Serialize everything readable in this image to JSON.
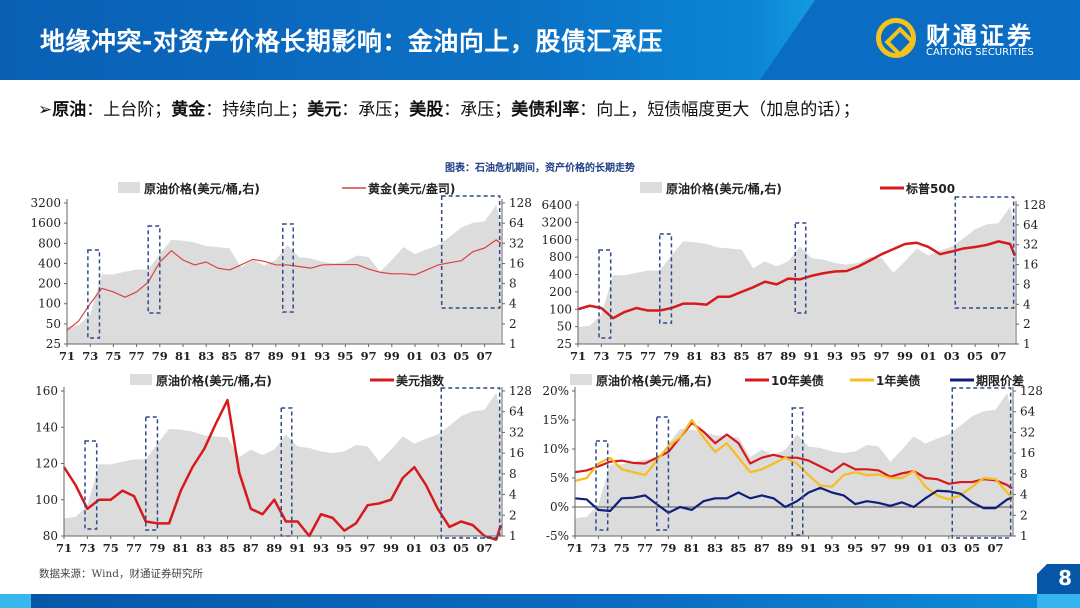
{
  "header": {
    "title": "地缘冲突-对资产价格长期影响：金油向上，股债汇承压",
    "logo_cn": "财通证券",
    "logo_en": "CAITONG SECURITIES"
  },
  "bullet": [
    {
      "k": "原油",
      "v": "上台阶；"
    },
    {
      "k": "黄金",
      "v": "持续向上；"
    },
    {
      "k": "美元",
      "v": "承压；"
    },
    {
      "k": "美股",
      "v": "承压；"
    },
    {
      "k": "美债利率",
      "v": "向上，短债幅度更大（加息的话）；"
    }
  ],
  "figure_title": "图表：石油危机期间，资产价格的长期走势",
  "source": "数据来源：Wind，财通证券研究所",
  "page_number": "8",
  "colors": {
    "oil_area": "#dcdcdc",
    "red": "#d7191c",
    "gold_line": "#d9423f",
    "yellow": "#f7bd1e",
    "navy": "#0d1f7a",
    "crisis_box": "#2f4a8c",
    "header": "#0b6cc4"
  },
  "chart_data": [
    {
      "type": "line",
      "scale": "log",
      "x_tick_labels": [
        "71",
        "73",
        "75",
        "77",
        "79",
        "81",
        "83",
        "85",
        "87",
        "89",
        "91",
        "93",
        "95",
        "97",
        "99",
        "01",
        "03",
        "05",
        "07"
      ],
      "ylim": [
        25,
        3200
      ],
      "y_ticks": [
        25,
        50,
        100,
        200,
        400,
        800,
        1600,
        3200
      ],
      "y2lim": [
        1,
        128
      ],
      "y2_ticks": [
        1,
        2,
        4,
        8,
        16,
        32,
        64,
        128
      ],
      "crisis_periods": [
        [
          1972.8,
          1973.8
        ],
        [
          1978.0,
          1979.0
        ],
        [
          1989.6,
          1990.5
        ],
        [
          2003.3,
          2008.3
        ]
      ],
      "series": [
        {
          "name": "原油价格(美元/桶,右)",
          "kind": "area",
          "axis": "right",
          "color": "#dcdcdc"
        },
        {
          "name": "黄金(美元/盎司)",
          "kind": "line",
          "axis": "left",
          "color": "#d9423f",
          "width": 1.2,
          "key": "gold"
        }
      ]
    },
    {
      "type": "line",
      "scale": "log",
      "x_tick_labels": [
        "71",
        "73",
        "75",
        "77",
        "79",
        "81",
        "83",
        "85",
        "87",
        "89",
        "91",
        "93",
        "95",
        "97",
        "99",
        "01",
        "03",
        "05",
        "07"
      ],
      "ylim": [
        25,
        6400
      ],
      "y_ticks": [
        25,
        50,
        100,
        200,
        400,
        800,
        1600,
        3200,
        6400
      ],
      "y2lim": [
        1,
        128
      ],
      "y2_ticks": [
        1,
        2,
        4,
        8,
        16,
        32,
        64,
        128
      ],
      "crisis_periods": [
        [
          1972.8,
          1973.8
        ],
        [
          1978.0,
          1979.0
        ],
        [
          1989.6,
          1990.5
        ],
        [
          2003.3,
          2008.3
        ]
      ],
      "series": [
        {
          "name": "原油价格(美元/桶,右)",
          "kind": "area",
          "axis": "right",
          "color": "#dcdcdc"
        },
        {
          "name": "标普500",
          "kind": "line",
          "axis": "left",
          "color": "#d7191c",
          "width": 2.5,
          "key": "spx"
        }
      ]
    },
    {
      "type": "line",
      "scale": "linear",
      "x_tick_labels": [
        "71",
        "73",
        "75",
        "77",
        "79",
        "81",
        "83",
        "85",
        "87",
        "89",
        "91",
        "93",
        "95",
        "97",
        "99",
        "01",
        "03",
        "05",
        "07"
      ],
      "ylim": [
        80,
        160
      ],
      "y_ticks": [
        80,
        100,
        120,
        140,
        160
      ],
      "y2lim": [
        1,
        128
      ],
      "y2_ticks": [
        1,
        2,
        4,
        8,
        16,
        32,
        64,
        128
      ],
      "crisis_periods": [
        [
          1972.8,
          1973.8
        ],
        [
          1978.0,
          1979.0
        ],
        [
          1989.6,
          1990.5
        ],
        [
          2003.3,
          2008.3
        ]
      ],
      "series": [
        {
          "name": "原油价格(美元/桶,右)",
          "kind": "area",
          "axis": "right",
          "color": "#dcdcdc"
        },
        {
          "name": "美元指数",
          "kind": "line",
          "axis": "left",
          "color": "#d7191c",
          "width": 2.5,
          "key": "usd"
        }
      ]
    },
    {
      "type": "line",
      "scale": "linear",
      "x_tick_labels": [
        "71",
        "73",
        "75",
        "77",
        "79",
        "81",
        "83",
        "85",
        "87",
        "89",
        "91",
        "93",
        "95",
        "97",
        "99",
        "01",
        "03",
        "05",
        "07"
      ],
      "ylim": [
        -5,
        20
      ],
      "y_ticks": [
        "-5%",
        "0%",
        "5%",
        "10%",
        "15%",
        "20%"
      ],
      "y_tick_values": [
        -5,
        0,
        5,
        10,
        15,
        20
      ],
      "y2lim": [
        1,
        128
      ],
      "y2_ticks": [
        1,
        2,
        4,
        8,
        16,
        32,
        64,
        128
      ],
      "crisis_periods": [
        [
          1972.8,
          1973.8
        ],
        [
          1978.0,
          1979.0
        ],
        [
          1989.6,
          1990.5
        ],
        [
          2003.3,
          2008.3
        ]
      ],
      "series": [
        {
          "name": "原油价格(美元/桶,右)",
          "kind": "area",
          "axis": "right",
          "color": "#dcdcdc"
        },
        {
          "name": "10年美债",
          "kind": "line",
          "axis": "left",
          "color": "#d7191c",
          "width": 2.2,
          "key": "y10"
        },
        {
          "name": "1年美债",
          "kind": "line",
          "axis": "left",
          "color": "#f7bd1e",
          "width": 2.2,
          "key": "y1"
        },
        {
          "name": "期限价差",
          "kind": "line",
          "axis": "left",
          "color": "#0d1f7a",
          "width": 2.2,
          "key": "spread"
        }
      ]
    }
  ],
  "series_values": {
    "x": [
      1971,
      1972,
      1973,
      1974,
      1975,
      1976,
      1977,
      1978,
      1979,
      1980,
      1981,
      1982,
      1983,
      1984,
      1985,
      1986,
      1987,
      1988,
      1989,
      1990,
      1991,
      1992,
      1993,
      1994,
      1995,
      1996,
      1997,
      1998,
      1999,
      2000,
      2001,
      2002,
      2003,
      2004,
      2005,
      2006,
      2007,
      2008,
      2008.4
    ],
    "oil": [
      1.8,
      1.9,
      2.8,
      11,
      11,
      12,
      13,
      13,
      22,
      36,
      35,
      33,
      29,
      28,
      27,
      14,
      18,
      15,
      18,
      30,
      20,
      19,
      17,
      16,
      17,
      21,
      20,
      12,
      18,
      28,
      22,
      26,
      30,
      40,
      55,
      65,
      68,
      120,
      60
    ],
    "gold": [
      40,
      55,
      100,
      170,
      150,
      125,
      150,
      210,
      420,
      620,
      450,
      380,
      420,
      340,
      320,
      380,
      460,
      430,
      380,
      380,
      360,
      340,
      380,
      385,
      385,
      385,
      330,
      295,
      280,
      280,
      270,
      320,
      380,
      410,
      440,
      600,
      680,
      900,
      800
    ],
    "spx": [
      100,
      115,
      105,
      70,
      90,
      105,
      95,
      95,
      105,
      125,
      125,
      120,
      165,
      165,
      200,
      240,
      300,
      270,
      340,
      330,
      380,
      420,
      450,
      460,
      550,
      700,
      900,
      1100,
      1350,
      1420,
      1200,
      900,
      1000,
      1130,
      1200,
      1300,
      1500,
      1350,
      850
    ],
    "usd": [
      118,
      108,
      95,
      100,
      100,
      105,
      102,
      88,
      87,
      87,
      105,
      118,
      128,
      142,
      155,
      115,
      95,
      92,
      100,
      88,
      88,
      80,
      92,
      90,
      83,
      87,
      97,
      98,
      100,
      112,
      118,
      108,
      95,
      85,
      88,
      86,
      80,
      78,
      86
    ],
    "y10": [
      6,
      6.3,
      7,
      7.8,
      8,
      7.6,
      7.5,
      8.5,
      9.5,
      12,
      14.5,
      13,
      11,
      12.5,
      11,
      7.5,
      8.5,
      9,
      8.5,
      8.5,
      8,
      7,
      6,
      7.5,
      6.5,
      6.5,
      6.3,
      5.2,
      5.8,
      6.2,
      5,
      4.8,
      4,
      4.3,
      4.3,
      4.8,
      4.6,
      3.8,
      3.2
    ],
    "y1": [
      4.5,
      5,
      7.5,
      8.5,
      6.5,
      6,
      5.5,
      8,
      10.5,
      12,
      15,
      12,
      9.5,
      11,
      8.5,
      6,
      6.5,
      7.5,
      8.5,
      7.5,
      5.5,
      3.7,
      3.5,
      5.5,
      6,
      5.5,
      5.6,
      5,
      5,
      6.2,
      3.5,
      2,
      1.3,
      2,
      3.5,
      5,
      4.8,
      2.5,
      1.6
    ],
    "spread": [
      1.5,
      1.3,
      -0.5,
      -0.7,
      1.5,
      1.6,
      2,
      0.5,
      -1,
      0,
      -0.5,
      1,
      1.5,
      1.5,
      2.5,
      1.5,
      2,
      1.5,
      0,
      1,
      2.5,
      3.3,
      2.5,
      2,
      0.5,
      1,
      0.7,
      0.2,
      0.8,
      0,
      1.5,
      2.8,
      2.7,
      2.3,
      0.8,
      -0.2,
      -0.2,
      1.3,
      1.6
    ]
  }
}
